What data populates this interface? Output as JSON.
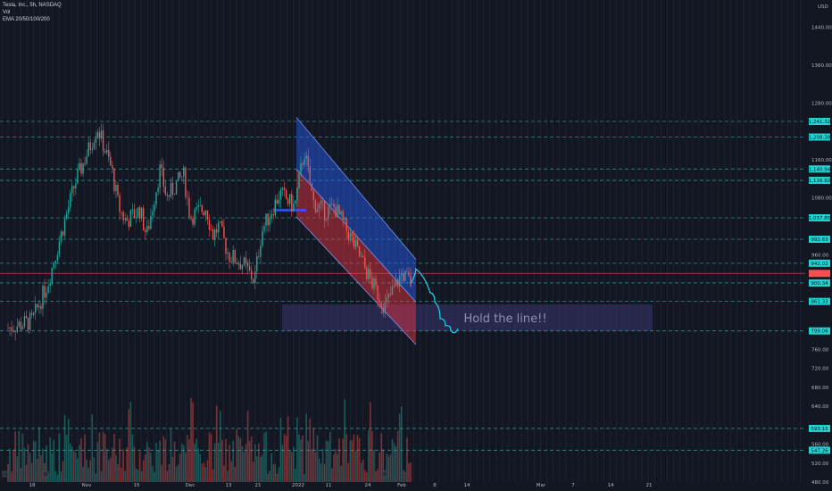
{
  "header": {
    "symbol": "Tesla, Inc., 5h, NASDAQ",
    "indicator_1": "Vol",
    "indicator_2": "EMA 20/50/100/200"
  },
  "colors": {
    "background": "#131722",
    "up": "#26a69a",
    "down": "#ef5350",
    "level_line": "#26a69a",
    "level_tag": "#22d3d3",
    "channel_upper": "#2962ff",
    "channel_lower": "#f23645",
    "target_zone": "#3b3671",
    "projection": "#22d3ee"
  },
  "chart_data": {
    "type": "candlestick",
    "currency": "USD",
    "y_axis_ticks": [
      1440,
      1360,
      1280,
      1160,
      1080,
      960,
      920,
      760,
      720,
      680,
      640,
      560,
      520,
      480
    ],
    "x_axis_labels": [
      "18",
      "Nov",
      "15",
      "Dec",
      "13",
      "21",
      "2022",
      "11",
      "24",
      "Feb",
      "8",
      "14",
      "Mar",
      "7",
      "14",
      "21"
    ],
    "price_scale": {
      "min": 480,
      "max": 1460
    },
    "horizontal_levels": [
      {
        "label": "1,241.32",
        "value": 1241.32
      },
      {
        "label": "1,208.38",
        "value": 1208.38
      },
      {
        "label": "1,140.94",
        "value": 1140.94
      },
      {
        "label": "1,116.92",
        "value": 1116.92
      },
      {
        "label": "1,037.85",
        "value": 1037.85
      },
      {
        "label": "992.63",
        "value": 992.63
      },
      {
        "label": "942.02",
        "value": 942.02
      },
      {
        "label": "900.34",
        "value": 900.34
      },
      {
        "label": "861.33",
        "value": 861.33
      },
      {
        "label": "799.06",
        "value": 799.06
      },
      {
        "label": "593.15",
        "value": 593.15
      },
      {
        "label": "547.26",
        "value": 547.26
      }
    ],
    "current_price": {
      "value": 920.5
    },
    "descending_channel": {
      "start_top": 1250,
      "start_mid": 1140,
      "start_bottom": 1040,
      "end_top": 950,
      "end_mid": 860,
      "end_bottom": 770
    },
    "price_path": [
      {
        "x": "2021-10-12",
        "close": 805
      },
      {
        "x": "2021-10-18",
        "close": 820
      },
      {
        "x": "2021-10-22",
        "close": 900
      },
      {
        "x": "2021-10-26",
        "close": 1020
      },
      {
        "x": "2021-10-29",
        "close": 1110
      },
      {
        "x": "2021-11-02",
        "close": 1190
      },
      {
        "x": "2021-11-04",
        "close": 1230
      },
      {
        "x": "2021-11-08",
        "close": 1140
      },
      {
        "x": "2021-11-10",
        "close": 1060
      },
      {
        "x": "2021-11-12",
        "close": 1030
      },
      {
        "x": "2021-11-16",
        "close": 1055
      },
      {
        "x": "2021-11-18",
        "close": 1000
      },
      {
        "x": "2021-11-22",
        "close": 1140
      },
      {
        "x": "2021-11-24",
        "close": 1080
      },
      {
        "x": "2021-11-29",
        "close": 1130
      },
      {
        "x": "2021-12-01",
        "close": 1040
      },
      {
        "x": "2021-12-06",
        "close": 1060
      },
      {
        "x": "2021-12-08",
        "close": 1000
      },
      {
        "x": "2021-12-10",
        "close": 1020
      },
      {
        "x": "2021-12-13",
        "close": 960
      },
      {
        "x": "2021-12-17",
        "close": 940
      },
      {
        "x": "2021-12-20",
        "close": 905
      },
      {
        "x": "2021-12-22",
        "close": 1010
      },
      {
        "x": "2021-12-27",
        "close": 1090
      },
      {
        "x": "2021-12-31",
        "close": 1060
      },
      {
        "x": "2022-01-03",
        "close": 1180
      },
      {
        "x": "2022-01-06",
        "close": 1070
      },
      {
        "x": "2022-01-10",
        "close": 1050
      },
      {
        "x": "2022-01-13",
        "close": 1060
      },
      {
        "x": "2022-01-18",
        "close": 1000
      },
      {
        "x": "2022-01-21",
        "close": 960
      },
      {
        "x": "2022-01-25",
        "close": 900
      },
      {
        "x": "2022-01-28",
        "close": 850
      },
      {
        "x": "2022-02-01",
        "close": 920
      },
      {
        "x": "2022-02-03",
        "close": 900
      }
    ],
    "projection_path": [
      {
        "x": "2022-02-04",
        "close": 930
      },
      {
        "x": "2022-02-07",
        "close": 880
      },
      {
        "x": "2022-02-08",
        "close": 860
      },
      {
        "x": "2022-02-09",
        "close": 825
      },
      {
        "x": "2022-02-10",
        "close": 810
      },
      {
        "x": "2022-02-11",
        "close": 800
      }
    ],
    "target_zone": {
      "from": 799.06,
      "to": 855,
      "label": "Hold the line!!"
    }
  }
}
